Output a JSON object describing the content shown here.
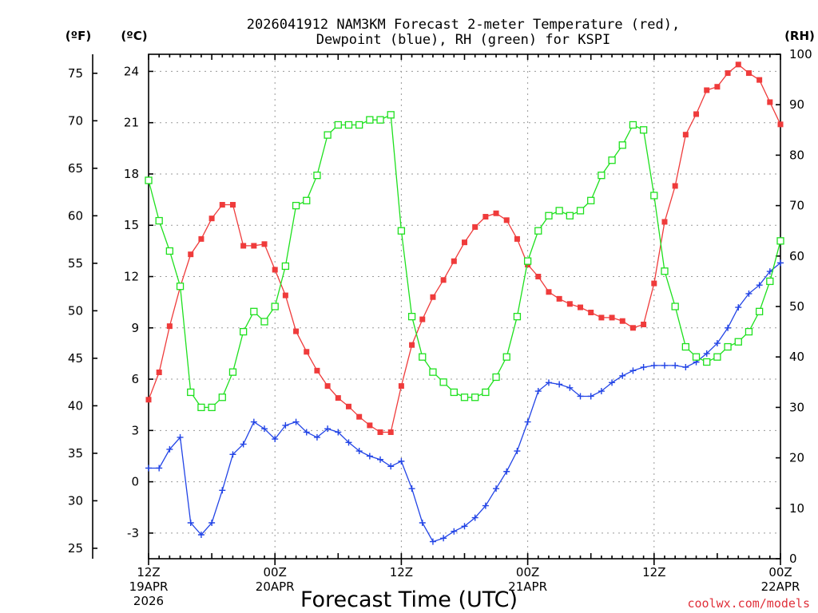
{
  "chart_data": {
    "type": "line",
    "title_line1": "2026041912 NAM3KM Forecast 2-meter Temperature (red),",
    "title_line2": "Dewpoint (blue), RH (green) for KSPI",
    "xlabel": "Forecast Time (UTC)",
    "credit": "coolwx.com/models",
    "x_hours": [
      0,
      1,
      2,
      3,
      4,
      5,
      6,
      7,
      8,
      9,
      10,
      11,
      12,
      13,
      14,
      15,
      16,
      17,
      18,
      19,
      20,
      21,
      22,
      23,
      24,
      25,
      26,
      27,
      28,
      29,
      30,
      31,
      32,
      33,
      34,
      35,
      36,
      37,
      38,
      39,
      40,
      41,
      42,
      43,
      44,
      45,
      46,
      47,
      48,
      49,
      50,
      51,
      52,
      53,
      54,
      55,
      56,
      57,
      58,
      59,
      60
    ],
    "x_range": [
      0,
      60
    ],
    "x_ticks": [
      {
        "hour": 0,
        "line1": "12Z",
        "line2": "19APR",
        "line3": "2026"
      },
      {
        "hour": 12,
        "line1": "00Z",
        "line2": "20APR",
        "line3": ""
      },
      {
        "hour": 24,
        "line1": "12Z",
        "line2": "",
        "line3": ""
      },
      {
        "hour": 36,
        "line1": "00Z",
        "line2": "21APR",
        "line3": ""
      },
      {
        "hour": 48,
        "line1": "12Z",
        "line2": "",
        "line3": ""
      },
      {
        "hour": 60,
        "line1": "00Z",
        "line2": "22APR",
        "line3": ""
      }
    ],
    "y_celsius": {
      "unit_label": "(ºC)",
      "range": [
        -4.5,
        25.0
      ],
      "ticks": [
        "-3",
        "0",
        "3",
        "6",
        "9",
        "12",
        "15",
        "18",
        "21",
        "24"
      ]
    },
    "y_fahrenheit": {
      "unit_label": "(ºF)",
      "ticks": [
        "25",
        "30",
        "35",
        "40",
        "45",
        "50",
        "55",
        "60",
        "65",
        "70",
        "75"
      ]
    },
    "y_rh": {
      "unit_label": "(RH)",
      "range": [
        0,
        100
      ],
      "ticks": [
        "0",
        "10",
        "20",
        "30",
        "40",
        "50",
        "60",
        "70",
        "80",
        "90",
        "100"
      ]
    },
    "series": [
      {
        "name": "2-meter Temperature",
        "color": "#ef3b3b",
        "axis": "celsius",
        "marker": "filled-square",
        "values": [
          4.8,
          6.4,
          9.1,
          11.4,
          13.3,
          14.2,
          15.4,
          16.2,
          16.2,
          13.8,
          13.8,
          13.9,
          12.4,
          10.9,
          8.8,
          7.6,
          6.5,
          5.6,
          4.9,
          4.4,
          3.8,
          3.3,
          2.9,
          2.9,
          5.6,
          8.0,
          9.5,
          10.8,
          11.8,
          12.9,
          14.0,
          14.9,
          15.5,
          15.7,
          15.3,
          14.2,
          12.7,
          12.0,
          11.1,
          10.7,
          10.4,
          10.2,
          9.9,
          9.6,
          9.6,
          9.4,
          9.0,
          9.2,
          11.6,
          15.2,
          17.3,
          20.3,
          21.5,
          22.9,
          23.1,
          23.9,
          24.4,
          23.9,
          23.5,
          22.2,
          20.9
        ]
      },
      {
        "name": "2-meter Dewpoint",
        "color": "#2244e6",
        "axis": "celsius",
        "marker": "plus",
        "values": [
          0.8,
          0.8,
          1.9,
          2.6,
          -2.4,
          -3.1,
          -2.4,
          -0.5,
          1.6,
          2.2,
          3.5,
          3.1,
          2.5,
          3.3,
          3.5,
          2.9,
          2.6,
          3.1,
          2.9,
          2.3,
          1.8,
          1.5,
          1.3,
          0.9,
          1.2,
          -0.4,
          -2.4,
          -3.5,
          -3.3,
          -2.9,
          -2.6,
          -2.1,
          -1.4,
          -0.4,
          0.6,
          1.8,
          3.5,
          5.3,
          5.8,
          5.7,
          5.5,
          5.0,
          5.0,
          5.3,
          5.8,
          6.2,
          6.5,
          6.7,
          6.8,
          6.8,
          6.8,
          6.7,
          7.0,
          7.5,
          8.1,
          9.0,
          10.2,
          11.0,
          11.5,
          12.3,
          12.8
        ]
      },
      {
        "name": "Relative Humidity",
        "color": "#1ee01e",
        "axis": "rh",
        "marker": "open-square",
        "values": [
          75,
          67,
          61,
          54,
          33,
          30,
          30,
          32,
          37,
          45,
          49,
          47,
          50,
          58,
          70,
          71,
          76,
          84,
          86,
          86,
          86,
          87,
          87,
          88,
          65,
          48,
          40,
          37,
          35,
          33,
          32,
          32,
          33,
          36,
          40,
          48,
          59,
          65,
          68,
          69,
          68,
          69,
          71,
          76,
          79,
          82,
          86,
          85,
          72,
          57,
          50,
          42,
          40,
          39,
          40,
          42,
          43,
          45,
          49,
          55,
          63
        ]
      }
    ]
  }
}
